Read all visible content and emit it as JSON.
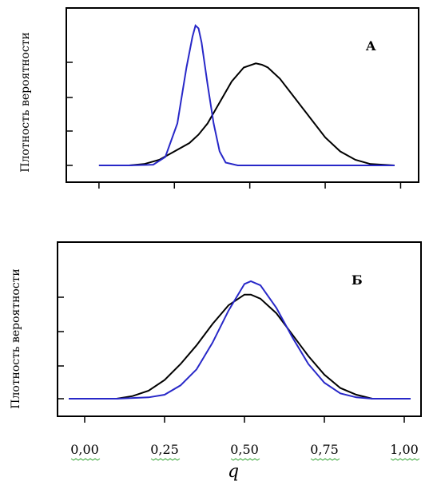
{
  "chart_data": [
    {
      "type": "line",
      "panel_label": "A",
      "ylabel": "Плотность вероятности",
      "xlim": [
        -0.05,
        1.02
      ],
      "x_ticks": [
        0.0,
        0.25,
        0.5,
        0.75,
        1.0
      ],
      "y_tick_count": 4,
      "series": [
        {
          "color": "#2828c8",
          "x": [
            0.0,
            0.1,
            0.18,
            0.22,
            0.26,
            0.29,
            0.31,
            0.32,
            0.33,
            0.34,
            0.36,
            0.38,
            0.4,
            0.42,
            0.46,
            0.6,
            0.8,
            0.98
          ],
          "y": [
            0.0,
            0.0,
            0.005,
            0.06,
            0.3,
            0.7,
            0.92,
            1.0,
            0.98,
            0.88,
            0.58,
            0.3,
            0.1,
            0.02,
            0.0,
            0.0,
            0.0,
            0.0
          ]
        },
        {
          "color": "#000000",
          "x": [
            0.0,
            0.1,
            0.15,
            0.2,
            0.25,
            0.3,
            0.33,
            0.36,
            0.4,
            0.44,
            0.48,
            0.52,
            0.54,
            0.56,
            0.6,
            0.65,
            0.7,
            0.75,
            0.8,
            0.85,
            0.9,
            0.98
          ],
          "y": [
            0.0,
            0.0,
            0.01,
            0.04,
            0.1,
            0.16,
            0.22,
            0.3,
            0.45,
            0.6,
            0.7,
            0.73,
            0.72,
            0.7,
            0.62,
            0.48,
            0.34,
            0.2,
            0.1,
            0.04,
            0.01,
            0.0
          ]
        }
      ]
    },
    {
      "type": "line",
      "panel_label": "Б",
      "ylabel": "Плотность вероятности",
      "xlabel": "q",
      "xlim": [
        -0.05,
        1.02
      ],
      "x_ticks": [
        0.0,
        0.25,
        0.5,
        0.75,
        1.0
      ],
      "x_tick_labels": [
        "0,00",
        "0,25",
        "0,50",
        "0,75",
        "1,00"
      ],
      "y_tick_count": 4,
      "series": [
        {
          "color": "#2828c8",
          "x": [
            -0.05,
            0.1,
            0.2,
            0.25,
            0.3,
            0.35,
            0.4,
            0.45,
            0.5,
            0.52,
            0.55,
            0.6,
            0.65,
            0.7,
            0.75,
            0.8,
            0.85,
            0.9,
            1.02
          ],
          "y": [
            0.0,
            0.0,
            0.01,
            0.03,
            0.1,
            0.22,
            0.42,
            0.66,
            0.86,
            0.88,
            0.85,
            0.68,
            0.46,
            0.26,
            0.12,
            0.04,
            0.01,
            0.0,
            0.0
          ]
        },
        {
          "color": "#000000",
          "x": [
            -0.05,
            0.1,
            0.15,
            0.2,
            0.25,
            0.3,
            0.35,
            0.4,
            0.45,
            0.5,
            0.52,
            0.55,
            0.6,
            0.65,
            0.7,
            0.75,
            0.8,
            0.85,
            0.9,
            1.02
          ],
          "y": [
            0.0,
            0.0,
            0.02,
            0.06,
            0.14,
            0.26,
            0.4,
            0.56,
            0.7,
            0.78,
            0.78,
            0.75,
            0.64,
            0.48,
            0.32,
            0.18,
            0.08,
            0.03,
            0.0,
            0.0
          ]
        }
      ]
    }
  ]
}
